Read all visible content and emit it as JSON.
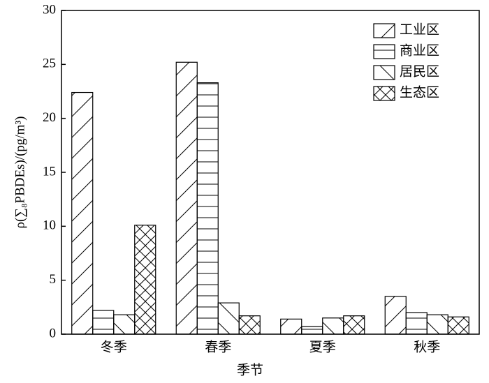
{
  "chart_data": {
    "type": "bar",
    "xlabel": "季节",
    "ylabel": "ρ(∑₈PBDEs)/(pg/m³)",
    "categories": [
      "冬季",
      "春季",
      "夏季",
      "秋季"
    ],
    "series": [
      {
        "name": "工业区",
        "color": "#000000",
        "hatch": "/",
        "values": [
          22.4,
          25.2,
          1.4,
          3.5
        ]
      },
      {
        "name": "商业区",
        "color": "#000000",
        "hatch": "-",
        "values": [
          2.2,
          23.3,
          0.7,
          2.0
        ]
      },
      {
        "name": "居民区",
        "color": "#000000",
        "hatch": "\\",
        "values": [
          1.8,
          2.9,
          1.5,
          1.8
        ]
      },
      {
        "name": "生态区",
        "color": "#000000",
        "hatch": "x",
        "values": [
          10.1,
          1.7,
          1.7,
          1.6
        ]
      }
    ],
    "ylim": [
      0,
      30
    ],
    "yticks": [
      0,
      5,
      10,
      15,
      20,
      25,
      30
    ],
    "grid": false,
    "legend": "upper right"
  }
}
